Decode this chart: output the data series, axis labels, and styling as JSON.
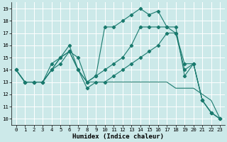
{
  "xlabel": "Humidex (Indice chaleur)",
  "bg_color": "#cce9e9",
  "line_color": "#1a7a6e",
  "grid_color": "#ffffff",
  "xlim": [
    -0.5,
    23.5
  ],
  "ylim": [
    9.5,
    19.5
  ],
  "xticks": [
    0,
    1,
    2,
    3,
    4,
    5,
    6,
    7,
    8,
    9,
    10,
    11,
    12,
    13,
    14,
    15,
    16,
    17,
    18,
    19,
    20,
    21,
    22,
    23
  ],
  "yticks": [
    10,
    11,
    12,
    13,
    14,
    15,
    16,
    17,
    18,
    19
  ],
  "series": [
    {
      "x": [
        0,
        1,
        2,
        3,
        4,
        5,
        6,
        7,
        8,
        9,
        10,
        11,
        12,
        13,
        14,
        15,
        16,
        17,
        18,
        19,
        20,
        21,
        22,
        23
      ],
      "y": [
        14,
        13,
        13,
        13,
        14,
        15,
        15.5,
        14,
        13,
        13,
        13,
        13,
        13,
        13,
        13,
        13,
        13,
        13,
        12.5,
        12.5,
        12.5,
        12,
        11.5,
        10
      ],
      "marker": false
    },
    {
      "x": [
        0,
        1,
        2,
        3,
        4,
        5,
        6,
        7,
        8,
        9,
        10,
        11,
        12,
        13,
        14,
        15,
        16,
        17,
        18,
        19,
        20,
        21,
        22,
        23
      ],
      "y": [
        14,
        13,
        13,
        13,
        14,
        15,
        15.5,
        14,
        13,
        13.5,
        14,
        14.5,
        15,
        16,
        17.5,
        17.5,
        17.5,
        17.5,
        17,
        14.5,
        14.5,
        11.5,
        10.5,
        10
      ],
      "marker": true
    },
    {
      "x": [
        0,
        1,
        2,
        3,
        4,
        5,
        6,
        7,
        8,
        9,
        10,
        11,
        12,
        13,
        14,
        15,
        16,
        17,
        18,
        19,
        20,
        21,
        22,
        23
      ],
      "y": [
        14,
        13,
        13,
        13,
        14.5,
        15,
        16,
        14,
        12.5,
        13,
        13,
        13.5,
        14,
        14.5,
        15,
        15.5,
        16,
        17,
        17,
        14,
        14.5,
        11.5,
        10.5,
        10
      ],
      "marker": true
    },
    {
      "x": [
        0,
        1,
        2,
        3,
        4,
        5,
        6,
        7,
        8,
        9,
        10,
        11,
        12,
        13,
        14,
        15,
        16,
        17,
        18,
        19,
        20,
        21,
        22,
        23
      ],
      "y": [
        14,
        13,
        13,
        13,
        14,
        14.5,
        15.5,
        15,
        13,
        13.5,
        17.5,
        17.5,
        18,
        18.5,
        19,
        18.5,
        18.8,
        17.5,
        17.5,
        13.5,
        14.5,
        11.5,
        10.5,
        10
      ],
      "marker": true
    }
  ],
  "xlabel_fontsize": 6.5,
  "tick_fontsize": 5.2,
  "figsize": [
    3.2,
    2.0
  ],
  "dpi": 100
}
